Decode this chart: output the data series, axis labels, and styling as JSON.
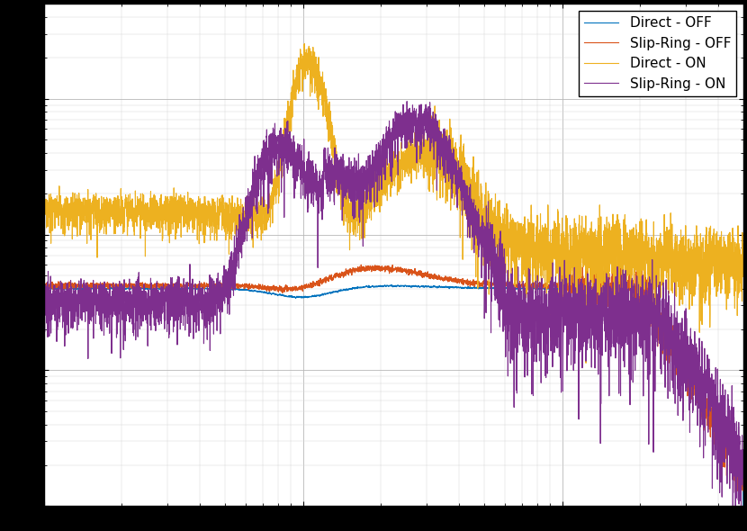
{
  "legend_labels": [
    "Direct - OFF",
    "Slip-Ring - OFF",
    "Direct - ON",
    "Slip-Ring - ON"
  ],
  "line_colors": [
    "#0072BD",
    "#D95319",
    "#EDB120",
    "#7E2F8E"
  ],
  "line_width": 0.8,
  "background_color": "#ffffff",
  "fig_facecolor": "#000000",
  "xmin": 1,
  "xmax": 500,
  "ymin": 1e-10,
  "ymax": 5e-07
}
